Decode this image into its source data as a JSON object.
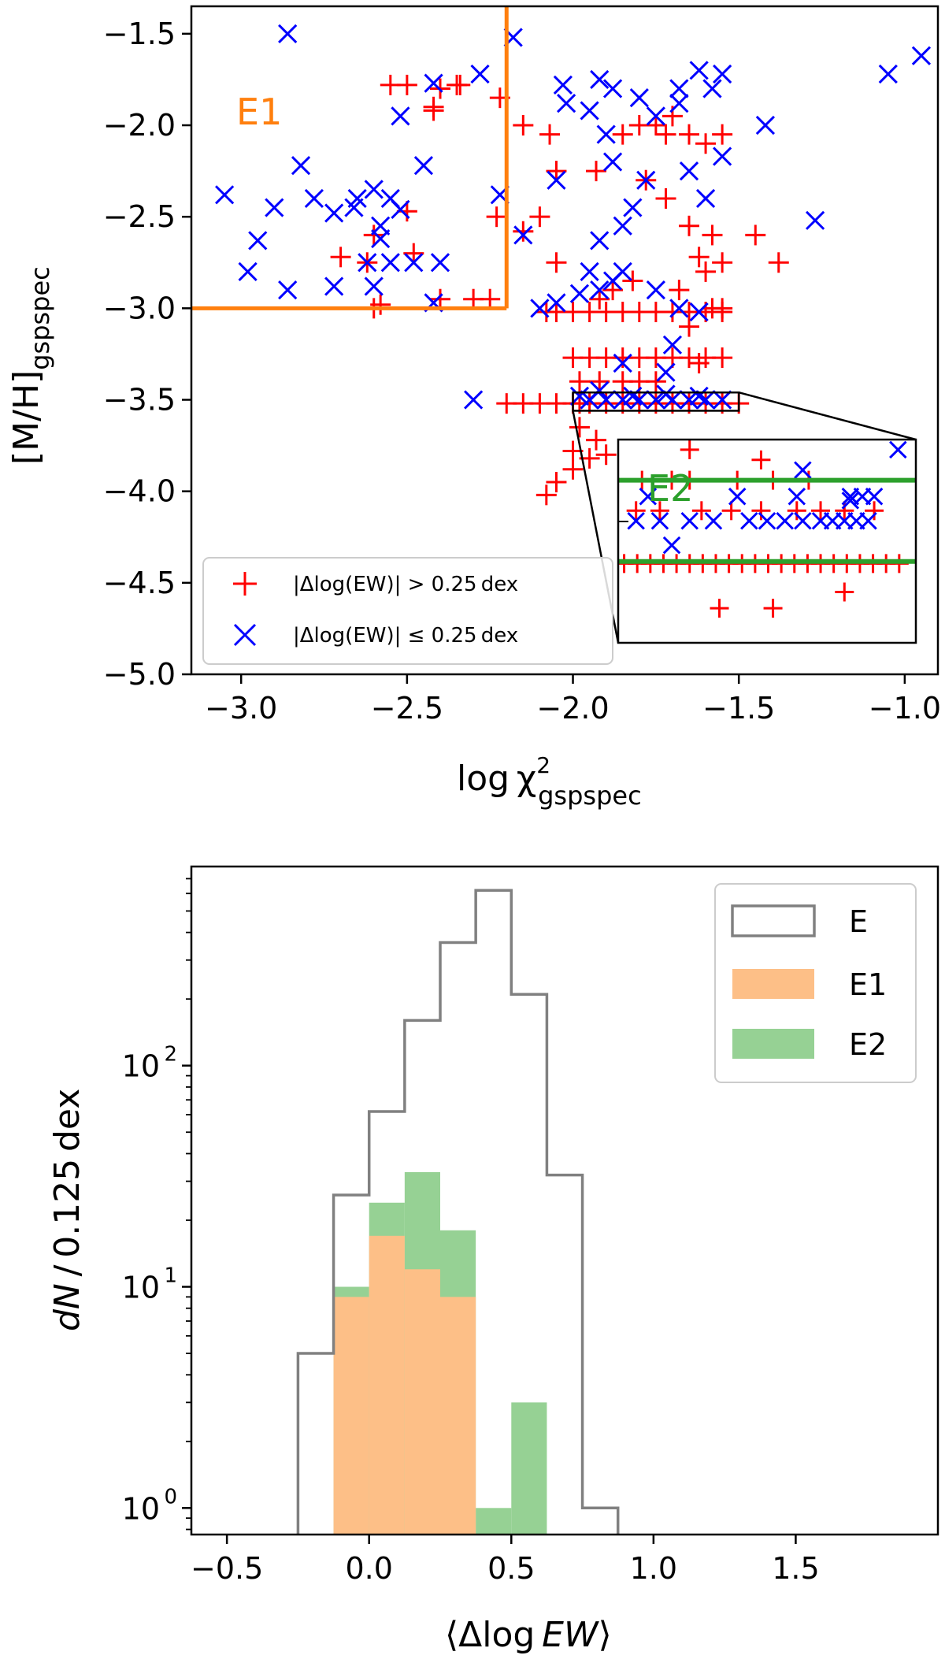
{
  "chart_data": [
    {
      "type": "scatter",
      "xlabel": "log χ²_gspspec",
      "xlabel_main": "log χ",
      "xlabel_sup": "2",
      "xlabel_sub": "gspspec",
      "ylabel": "[M/H]_gspspec",
      "ylabel_main": "[M/H]",
      "ylabel_sub": "gspspec",
      "xlim": [
        -3.15,
        -0.9
      ],
      "ylim": [
        -5.0,
        -1.35
      ],
      "xticks": [
        -3.0,
        -2.5,
        -2.0,
        -1.5,
        -1.0
      ],
      "xtick_labels": [
        "−3.0",
        "−2.5",
        "−2.0",
        "−1.5",
        "−1.0"
      ],
      "yticks": [
        -1.5,
        -2.0,
        -2.5,
        -3.0,
        -3.5,
        -4.0,
        -4.5,
        -5.0
      ],
      "ytick_labels": [
        "−1.5",
        "−2.0",
        "−2.5",
        "−3.0",
        "−3.5",
        "−4.0",
        "−4.5",
        "−5.0"
      ],
      "region_E1": {
        "label": "E1",
        "x_max": -2.2,
        "y_min": -3.0,
        "color": "#ff7f0e"
      },
      "legend": {
        "placement": "lower-left",
        "entries": [
          {
            "marker": "+",
            "color": "#ff0000",
            "label": "|Δlog(EW)| > 0.25 dex"
          },
          {
            "marker": "x",
            "color": "#0000ff",
            "label": "|Δlog(EW)| ≤ 0.25 dex"
          }
        ]
      },
      "series": [
        {
          "name": "|Δlog(EW)| > 0.25 dex",
          "marker": "+",
          "color": "#ff0000",
          "points": [
            [
              -2.55,
              -1.78
            ],
            [
              -2.5,
              -1.78
            ],
            [
              -2.42,
              -1.9
            ],
            [
              -2.35,
              -1.78
            ],
            [
              -2.34,
              -1.78
            ],
            [
              -2.4,
              -1.8
            ],
            [
              -2.22,
              -1.85
            ],
            [
              -2.42,
              -1.92
            ],
            [
              -2.5,
              -2.47
            ],
            [
              -2.48,
              -2.7
            ],
            [
              -2.6,
              -2.6
            ],
            [
              -2.62,
              -2.75
            ],
            [
              -2.7,
              -2.72
            ],
            [
              -2.23,
              -2.5
            ],
            [
              -2.6,
              -3.0
            ],
            [
              -2.4,
              -2.95
            ],
            [
              -2.3,
              -2.95
            ],
            [
              -2.25,
              -2.95
            ],
            [
              -2.58,
              -2.98
            ],
            [
              -2.15,
              -2.58
            ],
            [
              -2.05,
              -2.25
            ],
            [
              -2.07,
              -2.05
            ],
            [
              -2.15,
              -2.0
            ],
            [
              -2.1,
              -2.5
            ],
            [
              -2.05,
              -2.75
            ],
            [
              -1.93,
              -2.25
            ],
            [
              -1.85,
              -2.05
            ],
            [
              -1.8,
              -2.0
            ],
            [
              -1.75,
              -2.0
            ],
            [
              -1.72,
              -2.05
            ],
            [
              -1.7,
              -1.95
            ],
            [
              -1.65,
              -2.05
            ],
            [
              -1.6,
              -2.1
            ],
            [
              -1.55,
              -2.05
            ],
            [
              -1.78,
              -2.3
            ],
            [
              -1.72,
              -2.4
            ],
            [
              -1.65,
              -2.55
            ],
            [
              -1.62,
              -2.72
            ],
            [
              -1.58,
              -2.6
            ],
            [
              -1.55,
              -2.75
            ],
            [
              -1.45,
              -2.6
            ],
            [
              -1.38,
              -2.75
            ],
            [
              -1.68,
              -2.9
            ],
            [
              -1.6,
              -2.8
            ],
            [
              -1.58,
              -3.0
            ],
            [
              -1.55,
              -3.0
            ],
            [
              -1.65,
              -3.1
            ],
            [
              -1.62,
              -3.3
            ],
            [
              -2.2,
              -3.52
            ],
            [
              -2.15,
              -3.52
            ],
            [
              -2.1,
              -3.52
            ],
            [
              -2.05,
              -3.52
            ],
            [
              -2.0,
              -3.52
            ],
            [
              -1.98,
              -3.52
            ],
            [
              -1.95,
              -3.52
            ],
            [
              -1.9,
              -3.52
            ],
            [
              -1.85,
              -3.52
            ],
            [
              -1.8,
              -3.52
            ],
            [
              -1.75,
              -3.52
            ],
            [
              -1.7,
              -3.52
            ],
            [
              -1.65,
              -3.52
            ],
            [
              -1.6,
              -3.52
            ],
            [
              -1.55,
              -3.52
            ],
            [
              -1.5,
              -3.52
            ],
            [
              -2.08,
              -3.02
            ],
            [
              -2.05,
              -3.02
            ],
            [
              -2.0,
              -3.02
            ],
            [
              -1.95,
              -3.02
            ],
            [
              -1.9,
              -3.02
            ],
            [
              -1.85,
              -3.02
            ],
            [
              -1.8,
              -3.02
            ],
            [
              -1.75,
              -3.02
            ],
            [
              -1.7,
              -3.02
            ],
            [
              -1.65,
              -3.02
            ],
            [
              -1.6,
              -3.02
            ],
            [
              -1.55,
              -3.02
            ],
            [
              -1.92,
              -2.95
            ],
            [
              -1.88,
              -2.9
            ],
            [
              -1.82,
              -2.85
            ],
            [
              -2.0,
              -3.27
            ],
            [
              -1.95,
              -3.27
            ],
            [
              -1.9,
              -3.27
            ],
            [
              -1.85,
              -3.27
            ],
            [
              -1.8,
              -3.27
            ],
            [
              -1.75,
              -3.27
            ],
            [
              -1.7,
              -3.27
            ],
            [
              -1.65,
              -3.27
            ],
            [
              -1.6,
              -3.27
            ],
            [
              -1.55,
              -3.27
            ],
            [
              -1.98,
              -3.4
            ],
            [
              -1.92,
              -3.4
            ],
            [
              -1.85,
              -3.4
            ],
            [
              -1.8,
              -3.4
            ],
            [
              -1.75,
              -3.4
            ],
            [
              -2.0,
              -3.78
            ],
            [
              -1.98,
              -3.65
            ],
            [
              -1.95,
              -3.82
            ],
            [
              -1.9,
              -3.8
            ],
            [
              -2.05,
              -3.95
            ],
            [
              -2.08,
              -4.02
            ],
            [
              -2.0,
              -3.88
            ],
            [
              -1.93,
              -3.72
            ]
          ]
        },
        {
          "name": "|Δlog(EW)| ≤ 0.25 dex",
          "marker": "x",
          "color": "#0000ff",
          "points": [
            [
              -2.86,
              -1.5
            ],
            [
              -2.18,
              -1.52
            ],
            [
              -2.42,
              -1.77
            ],
            [
              -2.52,
              -1.95
            ],
            [
              -2.28,
              -1.72
            ],
            [
              -2.03,
              -1.78
            ],
            [
              -2.02,
              -1.88
            ],
            [
              -1.92,
              -1.75
            ],
            [
              -1.88,
              -1.8
            ],
            [
              -1.8,
              -1.85
            ],
            [
              -1.68,
              -1.8
            ],
            [
              -1.62,
              -1.7
            ],
            [
              -1.55,
              -1.72
            ],
            [
              -1.58,
              -1.8
            ],
            [
              -1.68,
              -1.88
            ],
            [
              -1.75,
              -1.95
            ],
            [
              -1.95,
              -1.92
            ],
            [
              -1.05,
              -1.72
            ],
            [
              -0.95,
              -1.62
            ],
            [
              -1.42,
              -2.0
            ],
            [
              -1.27,
              -2.52
            ],
            [
              -1.55,
              -2.17
            ],
            [
              -1.65,
              -2.25
            ],
            [
              -1.6,
              -2.4
            ],
            [
              -1.78,
              -2.3
            ],
            [
              -1.82,
              -2.45
            ],
            [
              -1.85,
              -2.55
            ],
            [
              -1.88,
              -2.2
            ],
            [
              -1.9,
              -2.05
            ],
            [
              -2.05,
              -2.3
            ],
            [
              -1.92,
              -2.63
            ],
            [
              -2.15,
              -2.6
            ],
            [
              -3.05,
              -2.38
            ],
            [
              -2.98,
              -2.8
            ],
            [
              -2.9,
              -2.45
            ],
            [
              -2.82,
              -2.22
            ],
            [
              -2.78,
              -2.4
            ],
            [
              -2.72,
              -2.48
            ],
            [
              -2.65,
              -2.4
            ],
            [
              -2.6,
              -2.35
            ],
            [
              -2.55,
              -2.4
            ],
            [
              -2.45,
              -2.22
            ],
            [
              -2.52,
              -2.46
            ],
            [
              -2.58,
              -2.62
            ],
            [
              -2.66,
              -2.45
            ],
            [
              -2.72,
              -2.88
            ],
            [
              -2.86,
              -2.9
            ],
            [
              -2.95,
              -2.63
            ],
            [
              -2.62,
              -2.75
            ],
            [
              -2.6,
              -2.88
            ],
            [
              -2.55,
              -2.75
            ],
            [
              -2.48,
              -2.75
            ],
            [
              -2.4,
              -2.75
            ],
            [
              -2.42,
              -2.97
            ],
            [
              -2.58,
              -2.55
            ],
            [
              -2.22,
              -2.38
            ],
            [
              -2.3,
              -3.5
            ],
            [
              -2.1,
              -3.0
            ],
            [
              -2.05,
              -2.97
            ],
            [
              -1.98,
              -2.92
            ],
            [
              -1.95,
              -2.8
            ],
            [
              -1.92,
              -2.9
            ],
            [
              -1.88,
              -2.85
            ],
            [
              -1.85,
              -2.8
            ],
            [
              -1.75,
              -2.9
            ],
            [
              -1.68,
              -3.0
            ],
            [
              -1.62,
              -3.02
            ],
            [
              -1.7,
              -3.2
            ],
            [
              -1.72,
              -3.35
            ],
            [
              -1.85,
              -3.3
            ],
            [
              -1.95,
              -3.5
            ],
            [
              -1.9,
              -3.5
            ],
            [
              -1.85,
              -3.5
            ],
            [
              -1.8,
              -3.5
            ],
            [
              -1.75,
              -3.5
            ],
            [
              -1.7,
              -3.5
            ],
            [
              -1.65,
              -3.5
            ],
            [
              -1.6,
              -3.5
            ],
            [
              -1.55,
              -3.5
            ],
            [
              -1.98,
              -3.48
            ],
            [
              -1.92,
              -3.45
            ],
            [
              -1.82,
              -3.48
            ],
            [
              -1.72,
              -3.47
            ],
            [
              -1.62,
              -3.48
            ]
          ]
        }
      ],
      "inset": {
        "label": "E2",
        "label_color": "#2ca02c",
        "source_xlim": [
          -2.0,
          -1.5
        ],
        "source_ylim": [
          -3.56,
          -3.46
        ],
        "E2_band": [
          -3.52,
          -3.48
        ],
        "band_color": "#2ca02c"
      }
    },
    {
      "type": "histogram",
      "scale": "log",
      "xlabel": "⟨Δlog EW⟩",
      "xlabel_main": "⟨Δlog ",
      "xlabel_italic": "EW",
      "xlabel_end": "⟩",
      "ylabel": "dN / 0.125 dex",
      "ylabel_italic": "dN",
      "ylabel_rest": " / 0.125 dex",
      "xlim": [
        -0.625,
        2.0
      ],
      "ylim_log": [
        -0.12,
        2.9
      ],
      "xticks": [
        -0.5,
        0.0,
        0.5,
        1.0,
        1.5
      ],
      "xtick_labels": [
        "−0.5",
        "0.0",
        "0.5",
        "1.0",
        "1.5"
      ],
      "yticks": [
        0,
        1,
        2
      ],
      "ytick_labels": [
        "10",
        "10",
        "10"
      ],
      "ytick_exponents": [
        "0",
        "1",
        "2"
      ],
      "bin_edges": [
        -0.25,
        -0.125,
        0.0,
        0.125,
        0.25,
        0.375,
        0.5,
        0.625,
        0.75,
        0.875
      ],
      "series": [
        {
          "name": "E",
          "style": "step",
          "color": "#808080",
          "counts": [
            5,
            26,
            62,
            160,
            360,
            620,
            210,
            32,
            1
          ]
        },
        {
          "name": "E1",
          "style": "filled",
          "color": "#fdbf87",
          "counts": [
            0,
            9,
            17,
            12,
            9,
            0,
            0,
            0,
            0
          ]
        },
        {
          "name": "E2",
          "style": "filled",
          "color": "#96d194",
          "counts": [
            0,
            10,
            24,
            33,
            18,
            1,
            3,
            0,
            0
          ]
        }
      ],
      "legend": {
        "placement": "top-right",
        "entries": [
          {
            "label": "E",
            "color": "#808080",
            "style": "outline"
          },
          {
            "label": "E1",
            "color": "#fdbf87",
            "style": "filled"
          },
          {
            "label": "E2",
            "color": "#96d194",
            "style": "filled"
          }
        ]
      }
    }
  ]
}
